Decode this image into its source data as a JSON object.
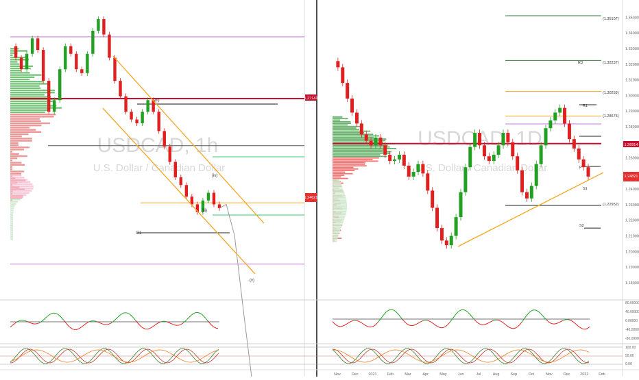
{
  "colors": {
    "up": "#22a022",
    "down": "#e02020",
    "level_red": "#c8102e",
    "orange": "#f5a623",
    "purple": "#c678dd",
    "green_line": "#2ecc71",
    "grid": "#eeeeee",
    "axis_text": "#666666",
    "watermark": "#d8d8d8",
    "price_badge": "#e8312f"
  },
  "chart_data": [
    {
      "type": "line",
      "panel": "left-1h",
      "watermark": {
        "symbol": "USDCAD, 1h",
        "description": "U.S. Dollar / Canadian Dollar"
      },
      "price_badges": [
        {
          "value": "1.27141",
          "color": "#c8102e"
        },
        {
          "value": "1.24621",
          "color": "#e8312f"
        }
      ],
      "wave_labels": [
        "(ii)",
        "(iv)",
        "(iii)",
        "(v)",
        "B1"
      ],
      "series": [
        {
          "values": [
            1.285,
            1.282,
            1.279,
            1.283,
            1.287,
            1.284,
            1.276,
            1.268,
            1.271,
            1.279,
            1.285,
            1.283,
            1.279,
            1.278,
            1.283,
            1.289,
            1.292,
            1.288,
            1.282,
            1.276,
            1.272,
            1.268,
            1.266,
            1.265,
            1.268,
            1.271,
            1.268,
            1.263,
            1.259,
            1.255,
            1.251,
            1.249,
            1.246,
            1.244,
            1.242,
            1.245,
            1.247,
            1.244,
            1.243
          ]
        }
      ],
      "projection": [
        1.243,
        1.244,
        1.236,
        1.215,
        1.195
      ],
      "levels": [
        1.2874,
        1.27141,
        1.2592,
        1.2444,
        1.2285
      ]
    },
    {
      "type": "line",
      "panel": "right-daily",
      "watermark": {
        "symbol": "USDCAD, 1D",
        "description": "U.S. Dollar / Canadian Dollar"
      },
      "x_ticks": [
        "Nov",
        "Dec",
        "2021",
        "Feb",
        "Mar",
        "Apr",
        "May",
        "Jun",
        "Jul",
        "Aug",
        "Sep",
        "Oct",
        "Nov",
        "Dec",
        "2022",
        "Feb"
      ],
      "y_ticks": [
        "1.35000",
        "1.34000",
        "1.33000",
        "1.32000",
        "1.31000",
        "1.30000",
        "1.29000",
        "1.28000",
        "1.27000",
        "1.26000",
        "1.25000",
        "1.24000",
        "1.23000",
        "1.22000",
        "1.21000",
        "1.20000",
        "1.19000",
        "1.18000",
        "1.17000"
      ],
      "ylim": [
        1.165,
        1.355
      ],
      "price_badges": [
        {
          "value": "1.26914",
          "color": "#c8102e"
        },
        {
          "value": "1.24821",
          "color": "#e8312f"
        }
      ],
      "level_labels": [
        "(1.35107)",
        "(1.32237)",
        "(1.30255)",
        "(1.28675)",
        "(1.22952)",
        "R3",
        "R2",
        "R1",
        "P",
        "S1",
        "S2"
      ],
      "series": [
        {
          "values": [
            1.322,
            1.318,
            1.308,
            1.298,
            1.289,
            1.282,
            1.275,
            1.271,
            1.268,
            1.273,
            1.268,
            1.262,
            1.258,
            1.259,
            1.262,
            1.255,
            1.248,
            1.251,
            1.256,
            1.25,
            1.239,
            1.228,
            1.215,
            1.207,
            1.204,
            1.21,
            1.222,
            1.238,
            1.254,
            1.267,
            1.276,
            1.268,
            1.261,
            1.258,
            1.262,
            1.268,
            1.276,
            1.27,
            1.261,
            1.252,
            1.238,
            1.234,
            1.242,
            1.256,
            1.268,
            1.279,
            1.284,
            1.289,
            1.292,
            1.282,
            1.272,
            1.266,
            1.259,
            1.254,
            1.248
          ]
        }
      ],
      "levels": [
        1.35107,
        1.32237,
        1.30255,
        1.28675,
        1.26914,
        1.2545,
        1.22952,
        1.215
      ]
    },
    {
      "type": "line",
      "panel": "oscillators",
      "y_ticks": [
        "80.00000",
        "40.00000",
        "0.00000",
        "-40.00000",
        "-80.00000"
      ],
      "stoch_ticks": [
        "100.00",
        "50.00",
        "0.00"
      ]
    }
  ]
}
